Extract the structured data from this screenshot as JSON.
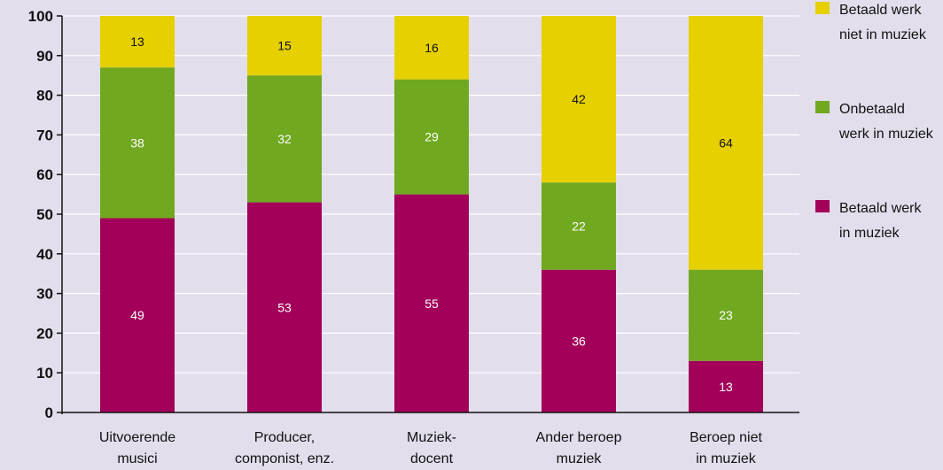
{
  "chart_data": {
    "type": "bar",
    "stacked": true,
    "categories": [
      [
        "Uitvoerende",
        "musici"
      ],
      [
        "Producer,",
        "componist, enz."
      ],
      [
        "Muziek-",
        "docent"
      ],
      [
        "Ander beroep",
        "muziek"
      ],
      [
        "Beroep niet",
        "in muziek"
      ]
    ],
    "series": [
      {
        "name": [
          "Betaald werk",
          "in muziek"
        ],
        "color": "#a3005a",
        "label_color": "#ffffff",
        "values": [
          49,
          53,
          55,
          36,
          13
        ]
      },
      {
        "name": [
          "Onbetaald",
          "werk in muziek"
        ],
        "color": "#70a820",
        "label_color": "#ffffff",
        "values": [
          38,
          32,
          29,
          22,
          23
        ]
      },
      {
        "name": [
          "Betaald werk",
          "niet in muziek"
        ],
        "color": "#e6d000",
        "label_color": "#111111",
        "values": [
          13,
          15,
          16,
          42,
          64
        ]
      }
    ],
    "ylim": [
      0,
      100
    ],
    "yticks": [
      0,
      10,
      20,
      30,
      40,
      50,
      60,
      70,
      80,
      90,
      100
    ],
    "grid": true,
    "legend_position": "right"
  }
}
